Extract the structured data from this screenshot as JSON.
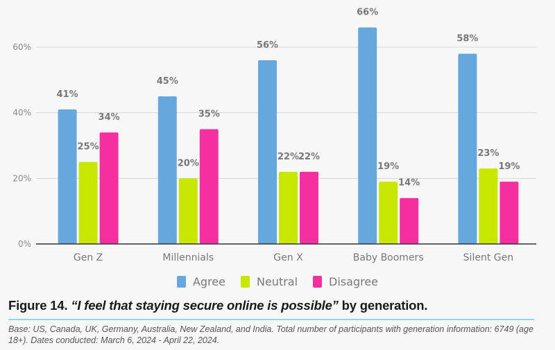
{
  "chart_data": {
    "type": "bar",
    "title": "",
    "xlabel": "",
    "ylabel": "",
    "categories": [
      "Gen Z",
      "Millennials",
      "Gen X",
      "Baby Boomers",
      "Silent Gen"
    ],
    "series": [
      {
        "name": "Agree",
        "color": "#66a8de",
        "values": [
          41,
          45,
          56,
          66,
          58
        ]
      },
      {
        "name": "Neutral",
        "color": "#c7e600",
        "values": [
          25,
          20,
          22,
          19,
          23
        ]
      },
      {
        "name": "Disagree",
        "color": "#f52fa0",
        "values": [
          34,
          35,
          22,
          14,
          19
        ]
      }
    ],
    "data_labels": [
      [
        "41%",
        "45%",
        "56%",
        "66%",
        "58%"
      ],
      [
        "25%",
        "20%",
        "22%",
        "19%",
        "23%"
      ],
      [
        "34%",
        "35%",
        "22%",
        "14%",
        "19%"
      ]
    ],
    "ylim": [
      0,
      60
    ],
    "yticks": [
      0,
      20,
      40,
      60
    ],
    "ytick_labels": [
      "0%",
      "20%",
      "40%",
      "60%"
    ],
    "grid": true,
    "legend_position": "bottom"
  },
  "legend": [
    {
      "label": "Agree",
      "color": "#66a8de"
    },
    {
      "label": "Neutral",
      "color": "#c7e600"
    },
    {
      "label": "Disagree",
      "color": "#f52fa0"
    }
  ],
  "figure": {
    "number_label": "Figure 14.",
    "quote": "“I feel that staying secure online is possible”",
    "suffix": " by generation.",
    "note": "Base: US, Canada, UK, Germany, Australia, New Zealand, and India. Total number of participants with generation information: 6749 (age 18+). Dates conducted: March 6, 2024 - April 22, 2024."
  }
}
